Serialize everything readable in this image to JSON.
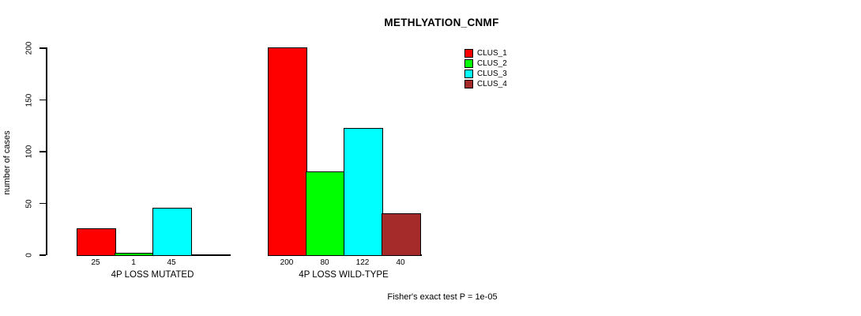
{
  "chart_data": {
    "type": "bar",
    "title": "METHLYATION_CNMF",
    "ylabel": "number of cases",
    "xlabel": "",
    "ylim": [
      0,
      200
    ],
    "yticks": [
      0,
      50,
      100,
      150,
      200
    ],
    "grid": false,
    "legend_position": "top-right",
    "categories": [
      "4P LOSS MUTATED",
      "4P LOSS WILD-TYPE"
    ],
    "series": [
      {
        "name": "CLUS_1",
        "color": "#FF0000",
        "values": [
          25,
          200
        ]
      },
      {
        "name": "CLUS_2",
        "color": "#00FF00",
        "values": [
          1,
          80
        ]
      },
      {
        "name": "CLUS_3",
        "color": "#00FFFF",
        "values": [
          45,
          122
        ]
      },
      {
        "name": "CLUS_4",
        "color": "#A52A2A",
        "values": [
          0,
          40
        ]
      }
    ],
    "bar_value_labels": [
      [
        "25",
        "1",
        "45",
        ""
      ],
      [
        "200",
        "80",
        "122",
        "40"
      ]
    ],
    "footnote": "Fisher's exact test P = 1e-05",
    "text_color": "#000000",
    "background_color": "#FFFFFF"
  }
}
